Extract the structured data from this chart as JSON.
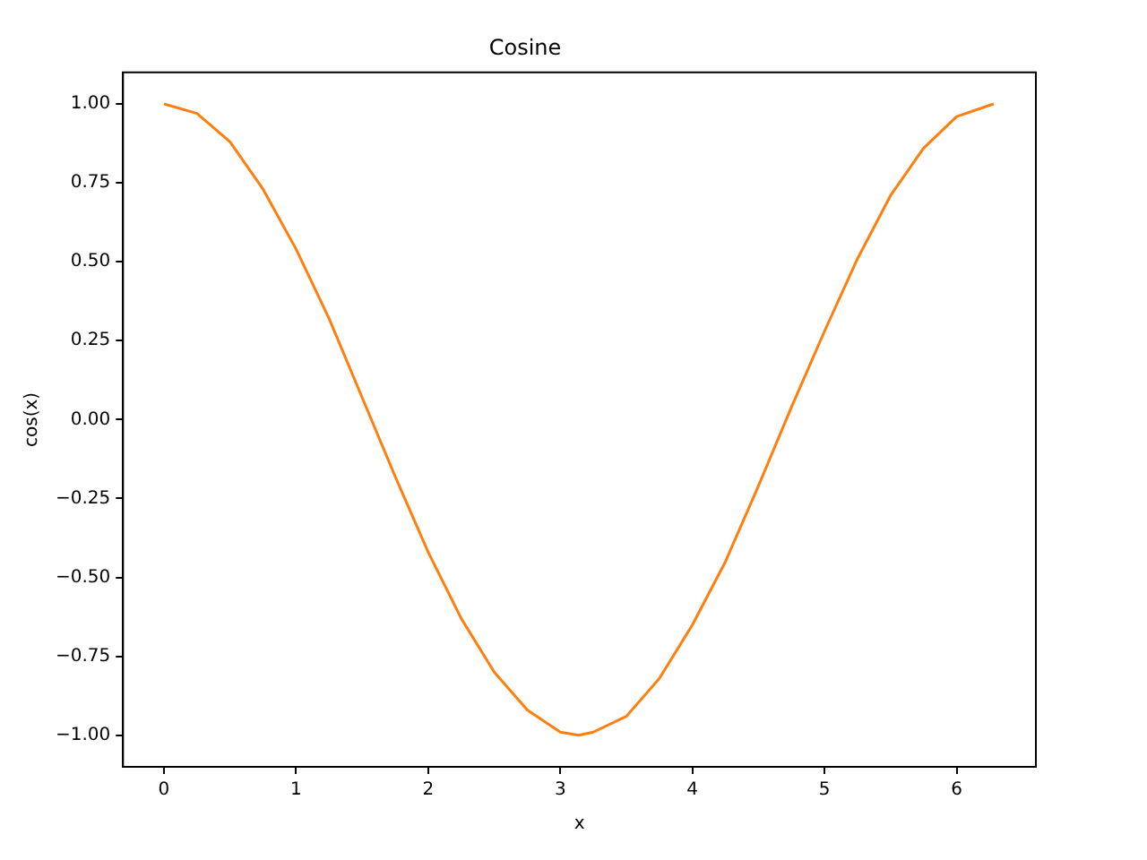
{
  "chart_data": {
    "type": "line",
    "title": "Cosine",
    "xlabel": "x",
    "ylabel": "cos(x)",
    "x": [
      0,
      0.25,
      0.5,
      0.75,
      1,
      1.25,
      1.5,
      1.75,
      2,
      2.25,
      2.5,
      2.75,
      3,
      3.14,
      3.25,
      3.5,
      3.75,
      4,
      4.25,
      4.5,
      4.75,
      5,
      5.25,
      5.5,
      5.75,
      6,
      6.28
    ],
    "series": [
      {
        "color": "#ff7f0e",
        "values": [
          1,
          0.97,
          0.88,
          0.73,
          0.54,
          0.32,
          0.07,
          -0.18,
          -0.42,
          -0.63,
          -0.8,
          -0.92,
          -0.99,
          -1,
          -0.99,
          -0.94,
          -0.82,
          -0.65,
          -0.45,
          -0.21,
          0.04,
          0.28,
          0.51,
          0.71,
          0.86,
          0.96,
          1
        ]
      }
    ],
    "xlim": [
      -0.31,
      6.6
    ],
    "ylim": [
      -1.1,
      1.1
    ],
    "xticks": [
      0,
      1,
      2,
      3,
      4,
      5,
      6
    ],
    "yticks": [
      {
        "value": -1,
        "label": "−1.00"
      },
      {
        "value": -0.75,
        "label": "−0.75"
      },
      {
        "value": -0.5,
        "label": "−0.50"
      },
      {
        "value": -0.25,
        "label": "−0.25"
      },
      {
        "value": 0,
        "label": "0.00"
      },
      {
        "value": 0.25,
        "label": "0.25"
      },
      {
        "value": 0.5,
        "label": "0.50"
      },
      {
        "value": 0.75,
        "label": "0.75"
      },
      {
        "value": 1,
        "label": "1.00"
      }
    ],
    "grid": false,
    "legend": false,
    "marker": "none",
    "line_style": "solid"
  }
}
